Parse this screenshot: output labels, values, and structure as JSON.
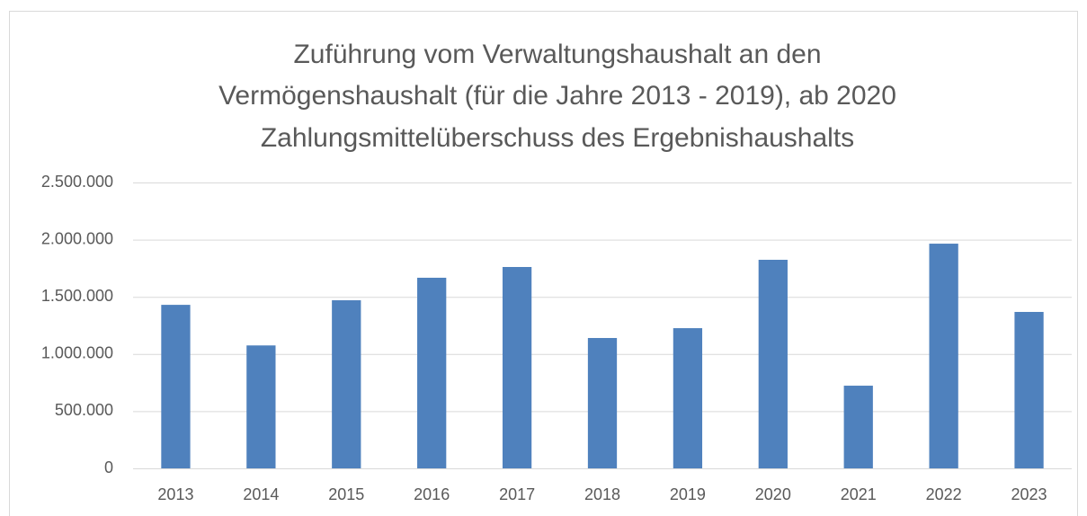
{
  "chart_data": {
    "type": "bar",
    "title": [
      "Zuführung vom Verwaltungshaushalt an den",
      "Vermögenshaushalt (für die Jahre 2013 - 2019), ab 2020",
      "Zahlungsmittelüberschuss des Ergebnishaushalts"
    ],
    "categories": [
      "2013",
      "2014",
      "2015",
      "2016",
      "2017",
      "2018",
      "2019",
      "2020",
      "2021",
      "2022",
      "2023"
    ],
    "values": [
      1430000,
      1075000,
      1470000,
      1667000,
      1761000,
      1140000,
      1226000,
      1824000,
      723000,
      1965000,
      1368000
    ],
    "color": "#4f81bd",
    "ylim": [
      0,
      2500000
    ],
    "yticks": [
      0,
      {
        "value": 500000,
        "label": "500.000"
      },
      {
        "value": 1000000,
        "label": "1.000.000"
      },
      {
        "value": 1500000,
        "label": "1.500.000"
      },
      {
        "value": 2000000,
        "label": "2.000.000"
      },
      {
        "value": 2500000,
        "label": "2.500.000"
      }
    ],
    "grid": true
  }
}
